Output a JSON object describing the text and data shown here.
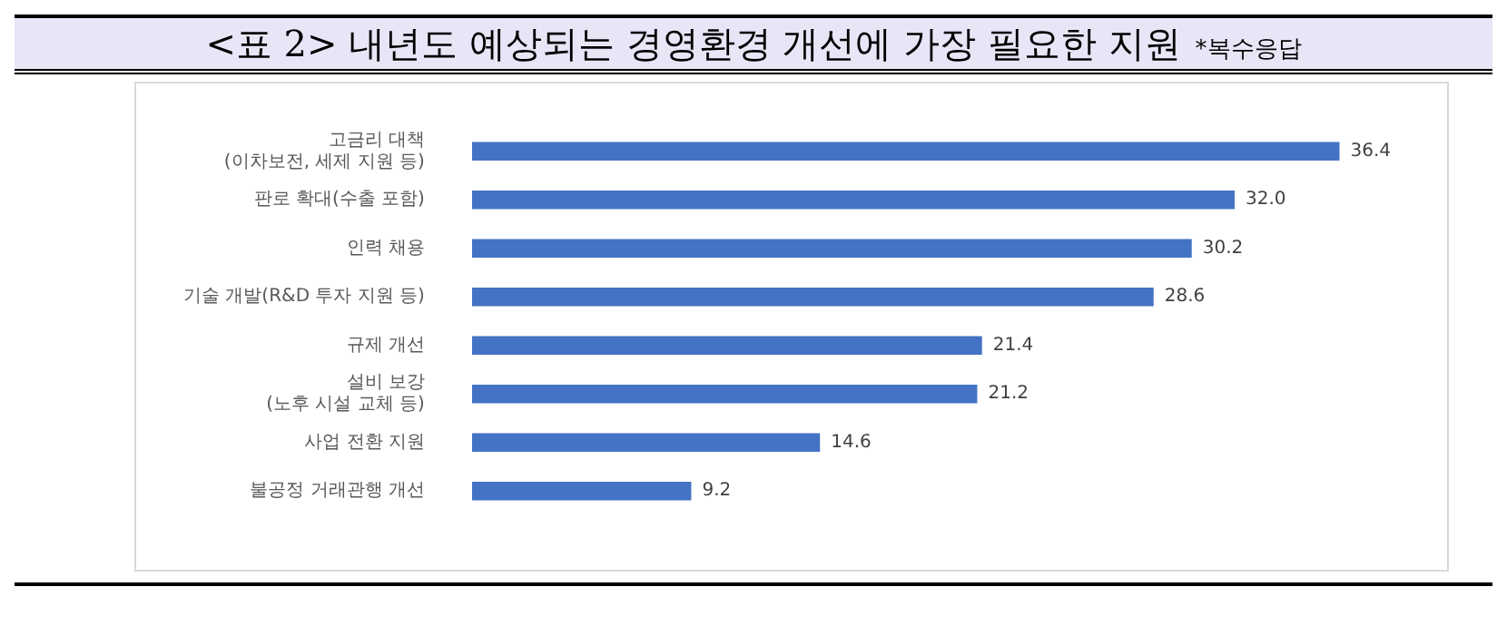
{
  "chart_data": {
    "type": "bar",
    "orientation": "horizontal",
    "title": "<표 2> 내년도 예상되는 경영환경 개선에 가장 필요한 지원",
    "subtitle": "*복수응답",
    "categories": [
      "고금리 대책\n(이차보전, 세제 지원 등)",
      "판로 확대(수출 포함)",
      "인력 채용",
      "기술 개발(R&D 투자 지원 등)",
      "규제 개선",
      "설비 보강\n(노후 시설 교체 등)",
      "사업 전환 지원",
      "불공정 거래관행 개선"
    ],
    "values": [
      36.4,
      32.0,
      30.2,
      28.6,
      21.4,
      21.2,
      14.6,
      9.2
    ],
    "value_labels": [
      "36.4",
      "32.0",
      "30.2",
      "28.6",
      "21.4",
      "21.2",
      "14.6",
      "9.2"
    ],
    "color": "#4472c4",
    "tick_labels": "y"
  }
}
